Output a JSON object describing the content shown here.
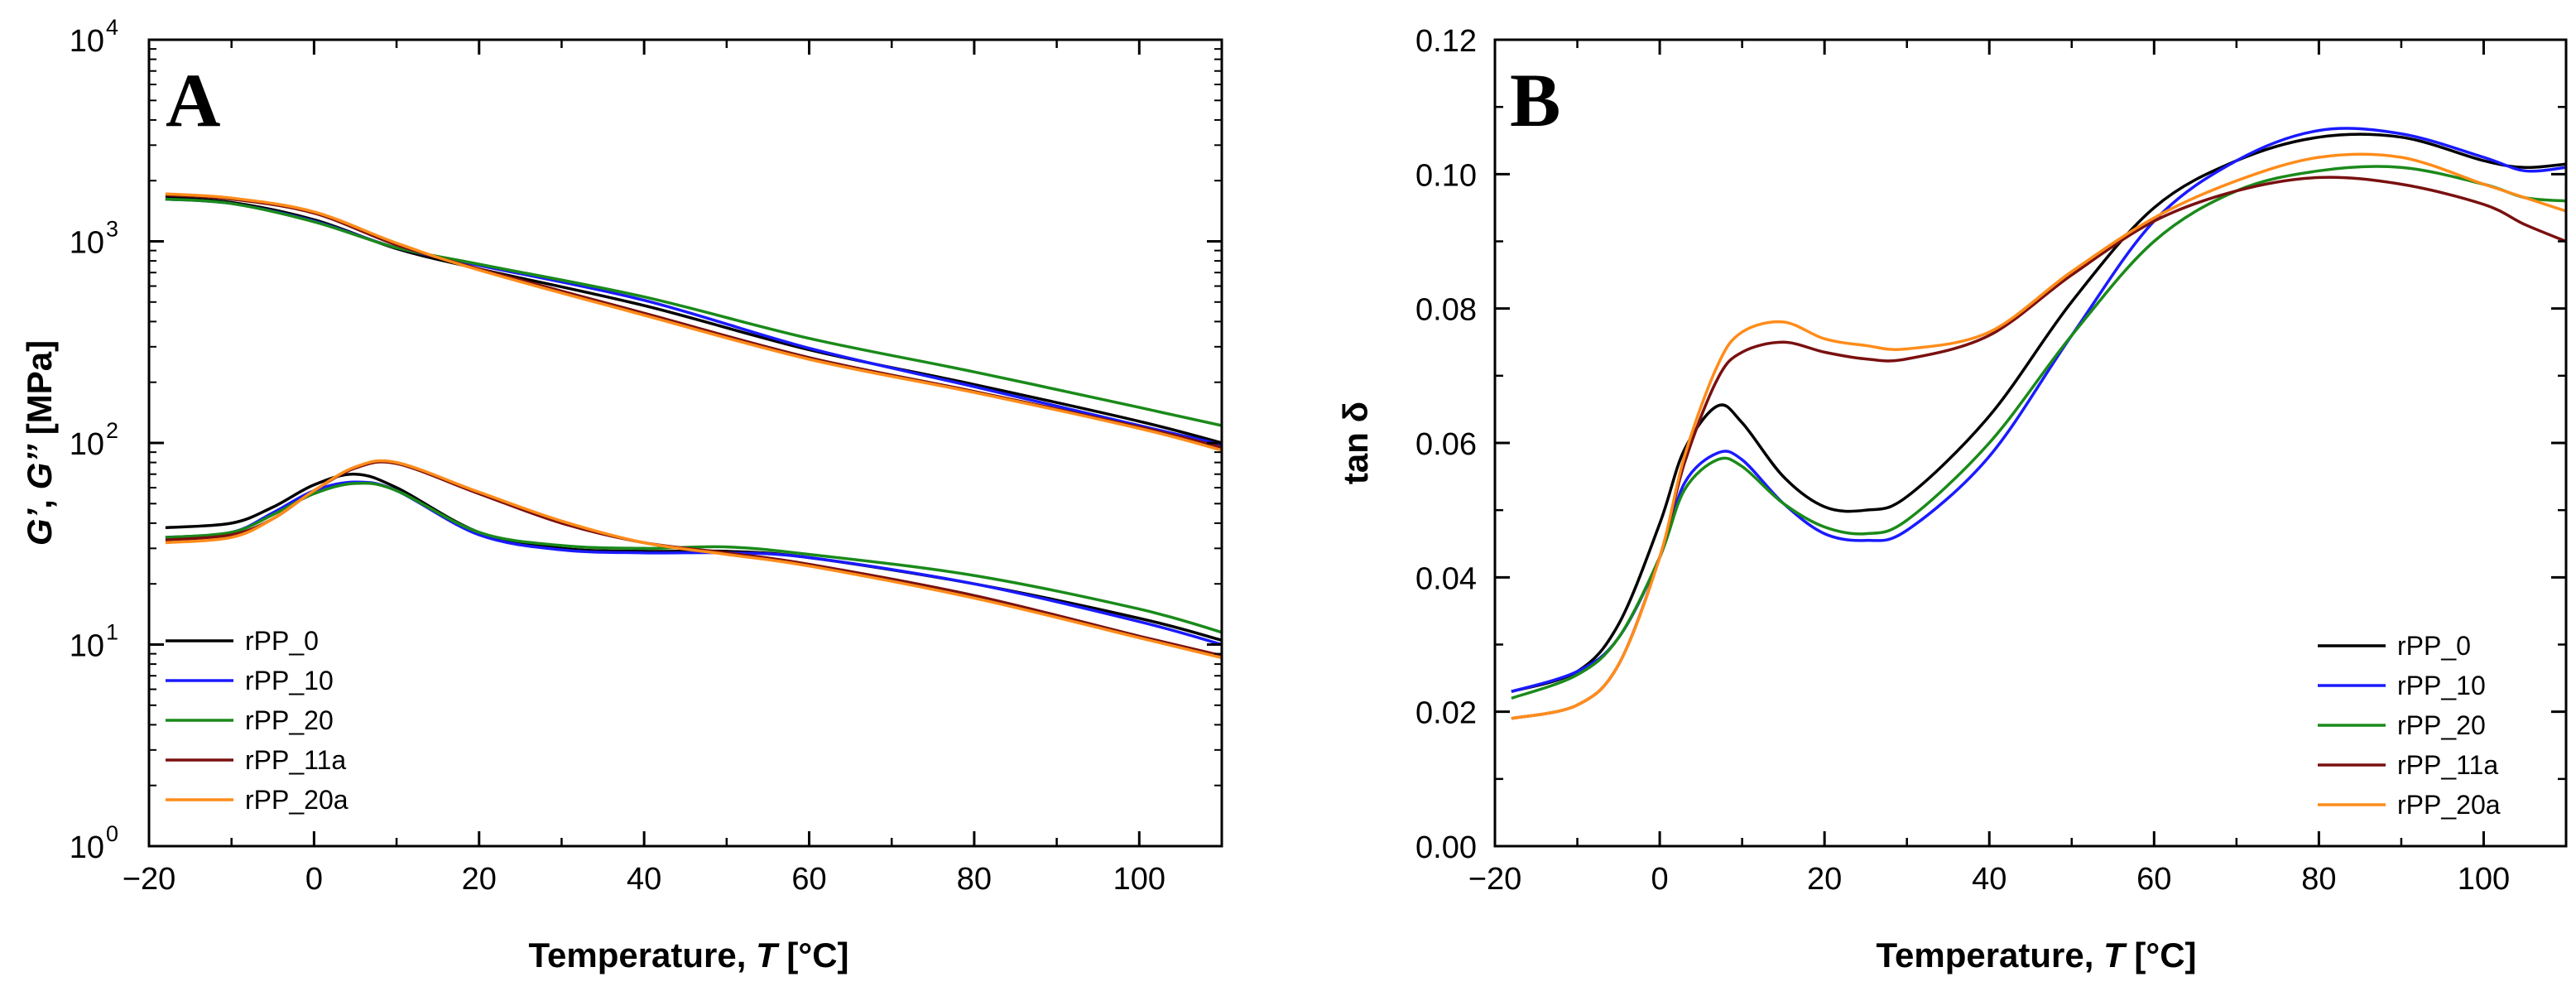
{
  "chart_data": [
    {
      "panel": "A",
      "type": "line",
      "y_scale": "log",
      "xlabel_main": "Temperature, ",
      "xlabel_italic": "T",
      "xlabel_unit": " [°C]",
      "ylabel_g1": "G’",
      "ylabel_sep": ", ",
      "ylabel_g2": "G’’",
      "ylabel_unit": " [MPa]",
      "xlim": [
        -20,
        110
      ],
      "ylim": [
        1,
        10000
      ],
      "x_ticks": [
        -20,
        0,
        20,
        40,
        60,
        80,
        100
      ],
      "x_tick_labels": [
        "−20",
        "0",
        "20",
        "40",
        "60",
        "80",
        "100"
      ],
      "y_ticks": [
        1,
        10,
        100,
        1000,
        10000
      ],
      "y_tick_mantissa": [
        "10",
        "10",
        "10",
        "10",
        "10"
      ],
      "y_tick_exponent": [
        "0",
        "1",
        "2",
        "3",
        "4"
      ],
      "grid": false,
      "legend_position": "lower-left",
      "series": [
        {
          "name": "rPP_0",
          "color": "#000000",
          "storage": {
            "x": [
              -18,
              -10,
              0,
              10,
              20,
              40,
              60,
              80,
              100,
              110
            ],
            "y": [
              1650,
              1560,
              1280,
              920,
              730,
              480,
              290,
              195,
              128,
              100
            ]
          },
          "loss": {
            "x": [
              -18,
              -10,
              -5,
              0,
              5,
              10,
              20,
              30,
              40,
              50,
              60,
              80,
              100,
              110
            ],
            "y": [
              38,
              40,
              48,
              62,
              70,
              60,
              36,
              30,
              29,
              29,
              27,
              20,
              13.5,
              10.5
            ]
          }
        },
        {
          "name": "rPP_10",
          "color": "#1a1aff",
          "storage": {
            "x": [
              -18,
              -10,
              0,
              10,
              20,
              40,
              60,
              80,
              100,
              110
            ],
            "y": [
              1620,
              1540,
              1260,
              930,
              760,
              510,
              295,
              190,
              122,
              98
            ]
          },
          "loss": {
            "x": [
              -18,
              -10,
              -5,
              0,
              5,
              10,
              20,
              30,
              40,
              50,
              60,
              80,
              100,
              110
            ],
            "y": [
              34,
              36,
              45,
              58,
              64,
              58,
              35,
              29.5,
              28.5,
              28.5,
              27,
              20,
              13,
              10
            ]
          }
        },
        {
          "name": "rPP_20",
          "color": "#1a8a1a",
          "storage": {
            "x": [
              -18,
              -10,
              0,
              10,
              20,
              40,
              60,
              80,
              100,
              110
            ],
            "y": [
              1620,
              1540,
              1250,
              930,
              770,
              530,
              330,
              225,
              150,
              122
            ]
          },
          "loss": {
            "x": [
              -18,
              -10,
              -5,
              0,
              5,
              10,
              20,
              30,
              40,
              50,
              60,
              80,
              100,
              110
            ],
            "y": [
              34,
              36,
              44,
              56,
              63,
              58,
              36,
              31,
              30,
              30.5,
              28,
              22,
              15,
              11.5
            ]
          }
        },
        {
          "name": "rPP_11a",
          "color": "#7a1010",
          "storage": {
            "x": [
              -18,
              -10,
              0,
              10,
              20,
              40,
              60,
              80,
              100,
              110
            ],
            "y": [
              1700,
              1620,
              1380,
              960,
              730,
              440,
              265,
              180,
              120,
              95
            ]
          },
          "loss": {
            "x": [
              -18,
              -10,
              -5,
              0,
              5,
              10,
              20,
              30,
              40,
              50,
              60,
              80,
              100,
              110
            ],
            "y": [
              33,
              35,
              42,
              58,
              75,
              79,
              56,
              40,
              32,
              28.5,
              25,
              17.5,
              11,
              8.8
            ]
          }
        },
        {
          "name": "rPP_20a",
          "color": "#ff8c1a",
          "storage": {
            "x": [
              -18,
              -10,
              0,
              10,
              20,
              40,
              60,
              80,
              100,
              110
            ],
            "y": [
              1720,
              1640,
              1400,
              980,
              720,
              430,
              260,
              178,
              118,
              92
            ]
          },
          "loss": {
            "x": [
              -18,
              -10,
              -5,
              0,
              5,
              10,
              20,
              30,
              40,
              50,
              60,
              80,
              100,
              110
            ],
            "y": [
              32,
              34,
              42,
              58,
              76,
              80,
              57,
              41,
              32,
              28,
              24.5,
              17,
              10.8,
              8.6
            ]
          }
        }
      ]
    },
    {
      "panel": "B",
      "type": "line",
      "y_scale": "linear",
      "xlabel_main": "Temperature, ",
      "xlabel_italic": "T",
      "xlabel_unit": " [°C]",
      "ylabel": "tan δ",
      "xlim": [
        -20,
        110
      ],
      "ylim": [
        0,
        0.12
      ],
      "x_ticks": [
        -20,
        0,
        20,
        40,
        60,
        80,
        100
      ],
      "x_tick_labels": [
        "−20",
        "0",
        "20",
        "40",
        "60",
        "80",
        "100"
      ],
      "y_ticks": [
        0,
        0.02,
        0.04,
        0.06,
        0.08,
        0.1,
        0.12
      ],
      "y_tick_labels": [
        "0.00",
        "0.02",
        "0.04",
        "0.06",
        "0.08",
        "0.10",
        "0.12"
      ],
      "grid": false,
      "legend_position": "lower-right",
      "series": [
        {
          "name": "rPP_0",
          "color": "#000000",
          "x": [
            -18,
            -10,
            -5,
            0,
            3,
            7,
            10,
            15,
            20,
            25,
            30,
            40,
            50,
            60,
            70,
            80,
            90,
            100,
            105,
            110
          ],
          "y": [
            0.023,
            0.026,
            0.033,
            0.048,
            0.059,
            0.0655,
            0.063,
            0.055,
            0.0505,
            0.05,
            0.052,
            0.064,
            0.081,
            0.095,
            0.102,
            0.1055,
            0.1055,
            0.102,
            0.101,
            0.1015
          ]
        },
        {
          "name": "rPP_10",
          "color": "#1a1aff",
          "x": [
            -18,
            -10,
            -5,
            0,
            3,
            7,
            10,
            15,
            20,
            25,
            30,
            40,
            50,
            60,
            70,
            80,
            90,
            100,
            105,
            110
          ],
          "y": [
            0.023,
            0.026,
            0.031,
            0.043,
            0.054,
            0.0585,
            0.0575,
            0.051,
            0.0465,
            0.0455,
            0.047,
            0.058,
            0.076,
            0.093,
            0.102,
            0.1065,
            0.106,
            0.1025,
            0.1005,
            0.101
          ]
        },
        {
          "name": "rPP_20",
          "color": "#1a8a1a",
          "x": [
            -18,
            -10,
            -5,
            0,
            3,
            7,
            10,
            15,
            20,
            25,
            30,
            40,
            50,
            60,
            70,
            80,
            90,
            100,
            105,
            110
          ],
          "y": [
            0.022,
            0.0255,
            0.031,
            0.043,
            0.053,
            0.0575,
            0.0565,
            0.051,
            0.0475,
            0.0465,
            0.0485,
            0.06,
            0.076,
            0.09,
            0.0975,
            0.1005,
            0.101,
            0.0985,
            0.0965,
            0.096
          ]
        },
        {
          "name": "rPP_11a",
          "color": "#7a1010",
          "x": [
            -18,
            -10,
            -5,
            0,
            3,
            7,
            10,
            15,
            20,
            25,
            30,
            40,
            50,
            60,
            70,
            80,
            90,
            100,
            105,
            110
          ],
          "y": [
            0.019,
            0.021,
            0.027,
            0.043,
            0.057,
            0.0695,
            0.0735,
            0.075,
            0.0735,
            0.0725,
            0.0725,
            0.076,
            0.085,
            0.093,
            0.0975,
            0.0995,
            0.0985,
            0.0955,
            0.0925,
            0.09
          ]
        },
        {
          "name": "rPP_20a",
          "color": "#ff8c1a",
          "x": [
            -18,
            -10,
            -5,
            0,
            3,
            7,
            10,
            15,
            20,
            25,
            30,
            40,
            50,
            60,
            70,
            80,
            90,
            100,
            105,
            110
          ],
          "y": [
            0.019,
            0.021,
            0.027,
            0.043,
            0.058,
            0.0715,
            0.0765,
            0.078,
            0.0755,
            0.0745,
            0.074,
            0.0765,
            0.0855,
            0.0935,
            0.099,
            0.1025,
            0.1025,
            0.0985,
            0.0965,
            0.0945
          ]
        }
      ]
    }
  ]
}
